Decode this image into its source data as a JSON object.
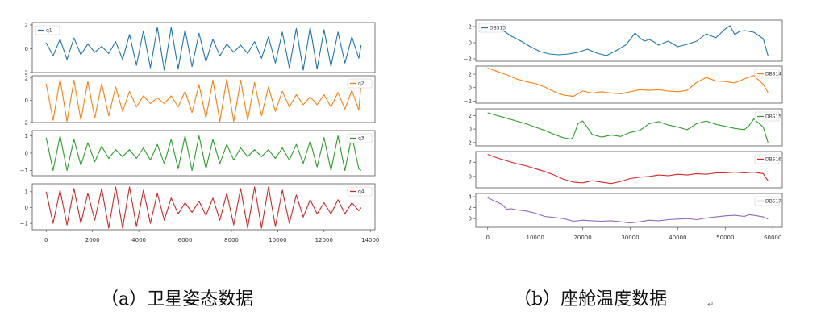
{
  "chart_data": [
    {
      "type": "line",
      "title": "",
      "xlabel": "",
      "ylabel": "",
      "caption": "（a）卫星姿态数据",
      "xlim": [
        -600,
        14200
      ],
      "xticks": [
        0,
        2000,
        4000,
        6000,
        8000,
        10000,
        12000,
        14000
      ],
      "xtick_labels": [
        "0",
        "2000",
        "4000",
        "6000",
        "8000",
        "10000",
        "12000",
        "14000"
      ],
      "legend_placement": "upper-left (q1), upper-right (q2, q3, q4)",
      "grid": false,
      "subplots": [
        {
          "name": "q1",
          "color": "#1f77b4",
          "ylim": [
            -2,
            2.2
          ],
          "yticks": [
            2,
            0,
            -2
          ],
          "ytick_labels": [
            "2",
            "0",
            "−2"
          ],
          "legend_pos": "upper-left",
          "x": [
            0,
            300,
            600,
            900,
            1200,
            1500,
            1800,
            2100,
            2400,
            2700,
            3000,
            3300,
            3600,
            3900,
            4200,
            4500,
            4800,
            5100,
            5400,
            5700,
            6000,
            6300,
            6600,
            6900,
            7200,
            7500,
            7800,
            8100,
            8400,
            8700,
            9000,
            9300,
            9600,
            9900,
            10200,
            10500,
            10800,
            11100,
            11400,
            11700,
            12000,
            12300,
            12600,
            12900,
            13200,
            13500,
            13600
          ],
          "y": [
            0.5,
            -0.6,
            0.8,
            -0.9,
            0.9,
            -0.5,
            0.4,
            -0.3,
            0.2,
            -0.4,
            0.6,
            -0.9,
            1.2,
            -1.4,
            1.5,
            -1.6,
            1.8,
            -1.8,
            1.8,
            -1.7,
            1.6,
            -1.5,
            1.3,
            -1.1,
            0.8,
            -0.6,
            0.4,
            -0.3,
            0.3,
            -0.4,
            0.6,
            -0.8,
            1.0,
            -1.2,
            1.4,
            -1.6,
            1.7,
            -1.8,
            1.8,
            -1.7,
            1.6,
            -1.5,
            1.4,
            -1.2,
            1.0,
            -0.8,
            0.3
          ]
        },
        {
          "name": "q2",
          "color": "#ff7f0e",
          "ylim": [
            -2,
            2.2
          ],
          "yticks": [
            2,
            0,
            -2
          ],
          "ytick_labels": [
            "2",
            "0",
            "−2"
          ],
          "legend_pos": "upper-right",
          "x": [
            0,
            300,
            600,
            900,
            1200,
            1500,
            1800,
            2100,
            2400,
            2700,
            3000,
            3300,
            3600,
            3900,
            4200,
            4500,
            4800,
            5100,
            5400,
            5700,
            6000,
            6300,
            6600,
            6900,
            7200,
            7500,
            7800,
            8100,
            8400,
            8700,
            9000,
            9300,
            9600,
            9900,
            10200,
            10500,
            10800,
            11100,
            11400,
            11700,
            12000,
            12300,
            12600,
            12900,
            13200,
            13500,
            13600
          ],
          "y": [
            1.5,
            -1.8,
            1.9,
            -1.9,
            1.8,
            -1.8,
            1.7,
            -1.6,
            1.5,
            -1.4,
            1.2,
            -1.0,
            0.8,
            -0.6,
            0.4,
            -0.3,
            0.2,
            -0.3,
            0.4,
            -0.6,
            0.8,
            -1.1,
            1.4,
            -1.6,
            1.8,
            -1.9,
            1.9,
            -1.9,
            1.8,
            -1.8,
            1.6,
            -1.4,
            1.2,
            -1.0,
            0.8,
            -0.6,
            0.5,
            -0.4,
            0.3,
            -0.4,
            0.5,
            -0.6,
            0.7,
            -0.8,
            0.9,
            -0.9,
            1.5
          ]
        },
        {
          "name": "q3",
          "color": "#2ca02c",
          "ylim": [
            -1.3,
            1.3
          ],
          "yticks": [
            1,
            0,
            -1
          ],
          "ytick_labels": [
            "1",
            "0",
            "−1"
          ],
          "legend_pos": "upper-right",
          "x": [
            0,
            300,
            600,
            900,
            1200,
            1500,
            1800,
            2100,
            2400,
            2700,
            3000,
            3300,
            3600,
            3900,
            4200,
            4500,
            4800,
            5100,
            5400,
            5700,
            6000,
            6300,
            6600,
            6900,
            7200,
            7500,
            7800,
            8100,
            8400,
            8700,
            9000,
            9300,
            9600,
            9900,
            10200,
            10500,
            10800,
            11100,
            11400,
            11700,
            12000,
            12300,
            12600,
            12900,
            13200,
            13500,
            13600
          ],
          "y": [
            0.9,
            -1.0,
            1.0,
            -1.0,
            0.8,
            -0.7,
            0.6,
            -0.5,
            0.4,
            -0.3,
            0.2,
            -0.2,
            0.2,
            -0.3,
            0.3,
            -0.4,
            0.5,
            -0.6,
            0.8,
            -0.9,
            1.0,
            -1.0,
            1.0,
            -0.9,
            0.8,
            -0.6,
            0.5,
            -0.4,
            0.3,
            -0.2,
            0.2,
            -0.2,
            0.2,
            -0.3,
            0.3,
            -0.4,
            0.5,
            -0.6,
            0.7,
            -0.8,
            0.9,
            -1.0,
            1.0,
            -1.0,
            1.0,
            -0.9,
            -1.0
          ]
        },
        {
          "name": "q4",
          "color": "#d62728",
          "ylim": [
            -1.4,
            1.5
          ],
          "yticks": [
            1,
            0,
            -1
          ],
          "ytick_labels": [
            "1",
            "0",
            "−1"
          ],
          "legend_pos": "upper-right",
          "x": [
            0,
            300,
            600,
            900,
            1200,
            1500,
            1800,
            2100,
            2400,
            2700,
            3000,
            3300,
            3600,
            3900,
            4200,
            4500,
            4800,
            5100,
            5400,
            5700,
            6000,
            6300,
            6600,
            6900,
            7200,
            7500,
            7800,
            8100,
            8400,
            8700,
            9000,
            9300,
            9600,
            9900,
            10200,
            10500,
            10800,
            11100,
            11400,
            11700,
            12000,
            12300,
            12600,
            12900,
            13200,
            13500,
            13600
          ],
          "y": [
            1.0,
            -1.0,
            1.1,
            -1.1,
            1.2,
            -1.0,
            0.9,
            -0.8,
            1.2,
            -1.3,
            1.3,
            -1.3,
            1.3,
            -1.2,
            1.1,
            -1.0,
            0.9,
            -0.8,
            0.6,
            -0.4,
            0.3,
            -0.3,
            0.4,
            -0.5,
            0.6,
            -0.8,
            0.9,
            -1.1,
            1.2,
            -1.3,
            1.3,
            -1.3,
            1.3,
            -1.2,
            1.1,
            -1.0,
            0.8,
            -0.6,
            0.5,
            -0.4,
            0.3,
            -0.4,
            0.5,
            -0.4,
            0.3,
            -0.2,
            0.0
          ]
        }
      ]
    },
    {
      "type": "line",
      "title": "",
      "xlabel": "",
      "ylabel": "",
      "caption": "（b）座舱温度数据",
      "xlim": [
        -2500,
        62000
      ],
      "xticks": [
        0,
        10000,
        20000,
        30000,
        40000,
        50000,
        60000
      ],
      "xtick_labels": [
        "0",
        "10000",
        "20000",
        "30000",
        "40000",
        "50000",
        "60000"
      ],
      "legend_placement": "upper-left (DBS13), upper-right (DBS14–DBS17)",
      "grid": false,
      "subplots": [
        {
          "name": "DBS13",
          "color": "#1f77b4",
          "ylim": [
            -2.3,
            2.8
          ],
          "yticks": [
            2,
            0,
            -2
          ],
          "ytick_labels": [
            "2",
            "0",
            "−2"
          ],
          "legend_pos": "upper-left",
          "x": [
            0,
            1500,
            3000,
            5000,
            7000,
            9000,
            11000,
            13000,
            15000,
            17000,
            19000,
            21000,
            23000,
            25000,
            27000,
            29000,
            30000,
            31000,
            32000,
            33000,
            34000,
            35000,
            36000,
            38000,
            40000,
            42000,
            44000,
            46000,
            48000,
            50000,
            51000,
            52000,
            53000,
            54000,
            56000,
            58000,
            59000
          ],
          "y": [
            2.4,
            2.1,
            1.6,
            0.8,
            0.2,
            -0.5,
            -1.1,
            -1.4,
            -1.5,
            -1.4,
            -1.2,
            -0.8,
            -1.3,
            -1.6,
            -1.0,
            -0.3,
            0.4,
            1.2,
            0.6,
            0.2,
            0.4,
            0.1,
            -0.3,
            0.2,
            -0.5,
            -0.2,
            0.2,
            1.1,
            0.6,
            1.7,
            2.1,
            1.0,
            1.4,
            1.5,
            1.3,
            0.5,
            -1.6
          ]
        },
        {
          "name": "DBS14",
          "color": "#ff7f0e",
          "ylim": [
            -2.3,
            3.2
          ],
          "yticks": [
            2,
            0,
            -2
          ],
          "ytick_labels": [
            "2",
            "0",
            "−2"
          ],
          "legend_pos": "upper-right",
          "x": [
            0,
            2000,
            4000,
            6000,
            8000,
            10000,
            12000,
            14000,
            16000,
            18000,
            20000,
            22000,
            24000,
            26000,
            28000,
            30000,
            32000,
            34000,
            36000,
            38000,
            40000,
            42000,
            44000,
            46000,
            48000,
            50000,
            52000,
            54000,
            56000,
            58000,
            59000
          ],
          "y": [
            2.9,
            2.4,
            1.9,
            1.3,
            0.9,
            0.6,
            0.1,
            -0.6,
            -1.1,
            -1.3,
            -0.5,
            -0.8,
            -0.6,
            -0.8,
            -0.9,
            -0.6,
            -0.3,
            -0.4,
            -0.3,
            -0.5,
            -0.6,
            -0.4,
            0.8,
            1.5,
            1.0,
            0.9,
            0.7,
            1.3,
            1.8,
            0.5,
            -0.7
          ]
        },
        {
          "name": "DBS15",
          "color": "#2ca02c",
          "ylim": [
            -2.5,
            3.0
          ],
          "yticks": [
            2,
            0,
            -2
          ],
          "ytick_labels": [
            "2",
            "0",
            "−2"
          ],
          "legend_pos": "upper-right",
          "x": [
            0,
            2000,
            4000,
            6000,
            8000,
            10000,
            12000,
            14000,
            16000,
            17500,
            18000,
            19000,
            20000,
            22000,
            24000,
            26000,
            28000,
            30000,
            32000,
            34000,
            36000,
            38000,
            40000,
            42000,
            44000,
            46000,
            48000,
            50000,
            52000,
            54000,
            55000,
            56000,
            57000,
            58000,
            59000
          ],
          "y": [
            2.4,
            2.0,
            1.6,
            1.2,
            0.8,
            0.3,
            -0.2,
            -0.8,
            -1.3,
            -1.5,
            -1.2,
            0.8,
            1.2,
            -0.8,
            -1.2,
            -0.9,
            -1.1,
            -0.5,
            -0.2,
            0.8,
            1.1,
            0.6,
            0.3,
            -0.1,
            0.8,
            1.2,
            0.7,
            0.4,
            0.1,
            -0.1,
            0.5,
            1.5,
            0.9,
            0.3,
            -2.0
          ]
        },
        {
          "name": "DBS16",
          "color": "#d62728",
          "ylim": [
            -1.6,
            3.5
          ],
          "yticks": [
            2,
            0
          ],
          "ytick_labels": [
            "2",
            "0"
          ],
          "legend_pos": "upper-right",
          "x": [
            0,
            2000,
            4000,
            6000,
            8000,
            10000,
            12000,
            14000,
            16000,
            18000,
            20000,
            22000,
            24000,
            26000,
            28000,
            30000,
            32000,
            34000,
            36000,
            38000,
            40000,
            42000,
            44000,
            46000,
            48000,
            50000,
            52000,
            54000,
            56000,
            58000,
            59000
          ],
          "y": [
            3.1,
            2.6,
            2.2,
            1.8,
            1.5,
            1.1,
            0.7,
            0.2,
            -0.4,
            -0.8,
            -0.9,
            -0.6,
            -0.8,
            -1.0,
            -0.7,
            -0.3,
            -0.1,
            0.0,
            0.2,
            0.1,
            0.3,
            0.2,
            0.4,
            0.3,
            0.5,
            0.5,
            0.6,
            0.5,
            0.6,
            0.4,
            -0.6
          ]
        },
        {
          "name": "DBS17",
          "color": "#9467bd",
          "ylim": [
            -1.6,
            4.6
          ],
          "yticks": [
            4,
            2,
            0
          ],
          "ytick_labels": [
            "4",
            "2",
            "0"
          ],
          "legend_pos": "upper-right",
          "x": [
            0,
            1500,
            3000,
            4000,
            5000,
            6000,
            8000,
            10000,
            12000,
            14000,
            16000,
            18000,
            20000,
            22000,
            24000,
            26000,
            28000,
            30000,
            32000,
            34000,
            36000,
            38000,
            40000,
            42000,
            44000,
            46000,
            48000,
            50000,
            52000,
            54000,
            55000,
            56000,
            58000,
            59000
          ],
          "y": [
            3.8,
            3.2,
            2.6,
            1.7,
            1.8,
            1.6,
            1.4,
            1.0,
            0.4,
            0.2,
            0.0,
            -0.5,
            -0.3,
            -0.4,
            -0.5,
            -0.4,
            -0.6,
            -0.8,
            -0.6,
            -0.3,
            -0.4,
            -0.2,
            -0.1,
            0.0,
            -0.2,
            0.1,
            0.3,
            0.5,
            0.6,
            0.4,
            0.7,
            0.6,
            0.3,
            -0.1
          ]
        }
      ]
    }
  ],
  "captions": {
    "a": "（a）卫星姿态数据",
    "b": "（b）座舱温度数据",
    "paragraph_mark": "↵"
  }
}
